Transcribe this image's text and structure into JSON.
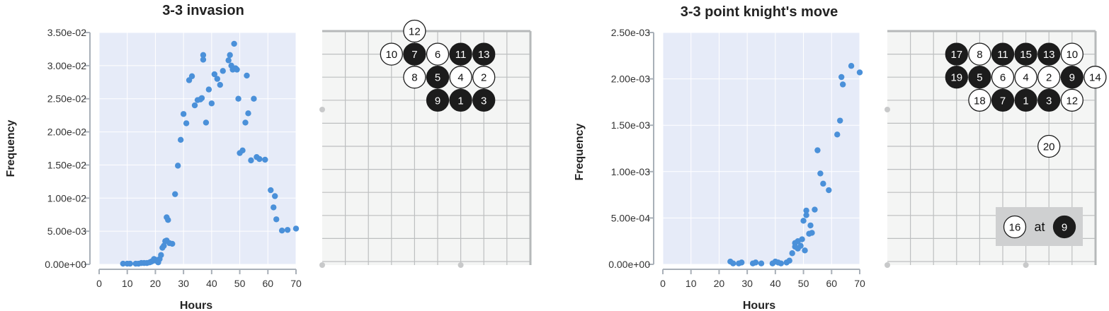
{
  "chart_data": [
    {
      "type": "scatter",
      "title": "3-3 invasion",
      "xlabel": "Hours",
      "ylabel": "Frequency",
      "xlim": [
        0,
        70
      ],
      "ylim": [
        0,
        0.035
      ],
      "xticks": [
        0,
        10,
        20,
        30,
        40,
        50,
        60,
        70
      ],
      "xtick_labels": [
        "0",
        "10",
        "20",
        "30",
        "40",
        "50",
        "60",
        "70"
      ],
      "yticks": [
        0,
        0.005,
        0.01,
        0.015,
        0.02,
        0.025,
        0.03,
        0.035
      ],
      "ytick_labels": [
        "0.00e+00",
        "5.00e-03",
        "1.00e-02",
        "1.50e-02",
        "2.00e-02",
        "2.50e-02",
        "3.00e-02",
        "3.50e-02"
      ],
      "grid": true,
      "point_color": "#4a90d9",
      "x": [
        8.5,
        10,
        11,
        13,
        14,
        15,
        16,
        17,
        18,
        18.5,
        19,
        19.5,
        20,
        20.5,
        21,
        21.5,
        22,
        22.5,
        23,
        23.5,
        24,
        24,
        24.5,
        25,
        26,
        27,
        28,
        29,
        30,
        31,
        32,
        33,
        34,
        35,
        36,
        36.5,
        37,
        37,
        38,
        39,
        40,
        41,
        42,
        43,
        44,
        46,
        46.5,
        47,
        47.5,
        48,
        48.5,
        49,
        49.5,
        50,
        51,
        52,
        52.5,
        53,
        54,
        55,
        56,
        57,
        59,
        61,
        62,
        62.5,
        63,
        65,
        67,
        70
      ],
      "y": [
        0.0001,
        0.0001,
        0.0001,
        0.0001,
        0.0001,
        0.0002,
        0.0002,
        0.0002,
        0.0003,
        0.0004,
        0.0005,
        0.0008,
        0.0007,
        0.0005,
        0.0003,
        0.0008,
        0.0014,
        0.0025,
        0.0028,
        0.0035,
        0.0036,
        0.0071,
        0.0067,
        0.0032,
        0.0031,
        0.0106,
        0.0149,
        0.0188,
        0.0227,
        0.0213,
        0.0278,
        0.0284,
        0.024,
        0.0248,
        0.0249,
        0.0251,
        0.0309,
        0.0316,
        0.0214,
        0.0264,
        0.0243,
        0.0287,
        0.028,
        0.0271,
        0.0292,
        0.0308,
        0.0316,
        0.03,
        0.0294,
        0.0333,
        0.0296,
        0.0294,
        0.025,
        0.0168,
        0.0172,
        0.0214,
        0.0285,
        0.0228,
        0.0157,
        0.025,
        0.0162,
        0.0159,
        0.0158,
        0.0112,
        0.0086,
        0.0103,
        0.0068,
        0.0051,
        0.0052,
        0.0054
      ]
    },
    {
      "type": "scatter",
      "title": "3-3 point knight's move",
      "xlabel": "Hours",
      "ylabel": "Frequency",
      "xlim": [
        0,
        70
      ],
      "ylim": [
        0,
        0.0025
      ],
      "xticks": [
        0,
        10,
        20,
        30,
        40,
        50,
        60,
        70
      ],
      "xtick_labels": [
        "0",
        "10",
        "20",
        "30",
        "40",
        "50",
        "60",
        "70"
      ],
      "yticks": [
        0,
        0.0005,
        0.001,
        0.0015,
        0.002,
        0.0025
      ],
      "ytick_labels": [
        "0.00e+00",
        "5.00e-04",
        "1.00e-03",
        "1.50e-03",
        "2.00e-03",
        "2.50e-03"
      ],
      "grid": true,
      "point_color": "#4a90d9",
      "x": [
        24,
        25,
        27,
        28,
        32,
        33,
        35,
        39,
        40,
        41,
        42,
        44,
        45,
        46,
        47,
        47,
        48,
        48,
        49,
        49.5,
        50,
        50.5,
        51,
        51,
        52,
        52.5,
        53,
        54,
        55,
        56,
        57,
        59,
        62,
        63,
        63.5,
        64,
        67,
        70
      ],
      "y": [
        3e-05,
        1e-05,
        1e-05,
        2e-05,
        1e-05,
        2e-05,
        1e-05,
        1e-05,
        3e-05,
        2e-05,
        1e-05,
        2e-05,
        4e-05,
        0.00012,
        0.00023,
        0.00019,
        0.00017,
        0.00025,
        0.0002,
        0.00027,
        0.00047,
        0.00015,
        0.00058,
        0.00053,
        0.00033,
        0.00042,
        0.00034,
        0.00059,
        0.00123,
        0.00098,
        0.00087,
        0.0008,
        0.0014,
        0.00155,
        0.00202,
        0.00194,
        0.00214,
        0.00207
      ]
    }
  ],
  "boards": [
    {
      "name": "3-3 invasion",
      "grid_color": "#bdbfc0",
      "background": "#f4f5f4",
      "stones": [
        {
          "label": "12",
          "color": "white",
          "col": 4,
          "row": 0
        },
        {
          "label": "10",
          "color": "white",
          "col": 3,
          "row": 1
        },
        {
          "label": "7",
          "color": "black",
          "col": 4,
          "row": 1
        },
        {
          "label": "6",
          "color": "white",
          "col": 5,
          "row": 1
        },
        {
          "label": "11",
          "color": "black",
          "col": 6,
          "row": 1
        },
        {
          "label": "13",
          "color": "black",
          "col": 7,
          "row": 1
        },
        {
          "label": "8",
          "color": "white",
          "col": 4,
          "row": 2
        },
        {
          "label": "5",
          "color": "black",
          "col": 5,
          "row": 2
        },
        {
          "label": "4",
          "color": "white",
          "col": 6,
          "row": 2
        },
        {
          "label": "2",
          "color": "white",
          "col": 7,
          "row": 2
        },
        {
          "label": "9",
          "color": "black",
          "col": 5,
          "row": 3
        },
        {
          "label": "1",
          "color": "black",
          "col": 6,
          "row": 3
        },
        {
          "label": "3",
          "color": "black",
          "col": 7,
          "row": 3
        }
      ],
      "caption": null
    },
    {
      "name": "3-3 point knight's move",
      "grid_color": "#bdbfc0",
      "background": "#f4f5f4",
      "stones": [
        {
          "label": "17",
          "color": "black",
          "col": 3,
          "row": 1
        },
        {
          "label": "8",
          "color": "white",
          "col": 4,
          "row": 1
        },
        {
          "label": "11",
          "color": "black",
          "col": 5,
          "row": 1
        },
        {
          "label": "15",
          "color": "black",
          "col": 6,
          "row": 1
        },
        {
          "label": "13",
          "color": "black",
          "col": 7,
          "row": 1
        },
        {
          "label": "10",
          "color": "white",
          "col": 8,
          "row": 1
        },
        {
          "label": "19",
          "color": "black",
          "col": 3,
          "row": 2
        },
        {
          "label": "5",
          "color": "black",
          "col": 4,
          "row": 2
        },
        {
          "label": "6",
          "color": "white",
          "col": 5,
          "row": 2
        },
        {
          "label": "4",
          "color": "white",
          "col": 6,
          "row": 2
        },
        {
          "label": "2",
          "color": "white",
          "col": 7,
          "row": 2
        },
        {
          "label": "9",
          "color": "black",
          "col": 8,
          "row": 2
        },
        {
          "label": "14",
          "color": "white",
          "col": 9,
          "row": 2
        },
        {
          "label": "18",
          "color": "white",
          "col": 4,
          "row": 3
        },
        {
          "label": "7",
          "color": "black",
          "col": 5,
          "row": 3
        },
        {
          "label": "1",
          "color": "black",
          "col": 6,
          "row": 3
        },
        {
          "label": "3",
          "color": "black",
          "col": 7,
          "row": 3
        },
        {
          "label": "12",
          "color": "white",
          "col": 8,
          "row": 3
        },
        {
          "label": "20",
          "color": "white",
          "col": 7,
          "row": 5
        }
      ],
      "caption": {
        "first": {
          "label": "16",
          "color": "white"
        },
        "middle": "at",
        "second": {
          "label": "9",
          "color": "black"
        }
      }
    }
  ]
}
